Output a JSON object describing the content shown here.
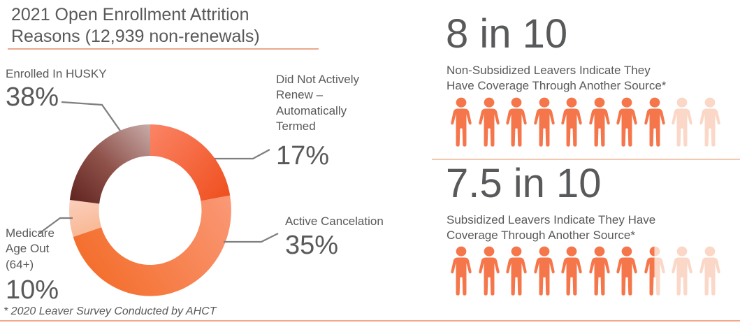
{
  "title": {
    "line1": "2021 Open Enrollment Attrition",
    "line2": "Reasons (12,939 non-renewals)"
  },
  "chart_data": [
    {
      "type": "pie",
      "subtype": "donut",
      "title": "2021 Open Enrollment Attrition Reasons (12,939 non-renewals)",
      "total_non_renewals": "12,939",
      "segments": [
        {
          "label": "Did Not Actively Renew – Automatically Termed",
          "value_pct": 17,
          "color": "#F2602F"
        },
        {
          "label": "Active Cancelation",
          "value_pct": 35,
          "color": "#F67E42"
        },
        {
          "label": "Medicare Age Out (64+)",
          "value_pct": 10,
          "color": "#FAC2A4"
        },
        {
          "label": "Enrolled In HUSKY",
          "value_pct": 38,
          "color": "#8F524B"
        }
      ],
      "legend_position": "callout labels with leader lines"
    },
    {
      "type": "pictograph",
      "title": "8 in 10",
      "label": "Non-Subsidized Leavers Indicate They Have Coverage Through Another Source*",
      "value": 8,
      "total": 10
    },
    {
      "type": "pictograph",
      "title": "7.5 in 10",
      "label": "Subsidized Leavers Indicate They Have Coverage Through Another Source*",
      "value": 7.5,
      "total": 10
    }
  ],
  "callouts": {
    "husky": {
      "lines": [
        "Enrolled In HUSKY"
      ],
      "pct": "38%"
    },
    "termed": {
      "lines": [
        "Did Not Actively",
        "Renew –",
        "Automatically",
        "Termed"
      ],
      "pct": "17%"
    },
    "active": {
      "lines": [
        "Active Cancelation"
      ],
      "pct": "35%"
    },
    "medicare": {
      "lines": [
        "Medicare",
        "Age Out",
        "(64+)"
      ],
      "pct": "10%"
    }
  },
  "stats": [
    {
      "headline": "8 in 10",
      "desc_line1": "Non-Subsidized Leavers Indicate They",
      "desc_line2": "Have Coverage Through Another Source*",
      "filled": 8,
      "total": 10
    },
    {
      "headline": "7.5 in 10",
      "desc_line1": "Subsidized Leavers Indicate They Have",
      "desc_line2": "Coverage Through Another Source*",
      "filled": 7.5,
      "total": 10
    }
  ],
  "footnote": "* 2020 Leaver Survey Conducted by AHCT",
  "colors": {
    "person_solid": "#F5764B",
    "person_faded": "#FAD7C7",
    "text_gray": "#595959",
    "leader_gray": "#7F7F7F",
    "title_underline": "#ECA98F",
    "mid_divider": "#F4C7B1",
    "bottom_line": "#F3A68B"
  }
}
